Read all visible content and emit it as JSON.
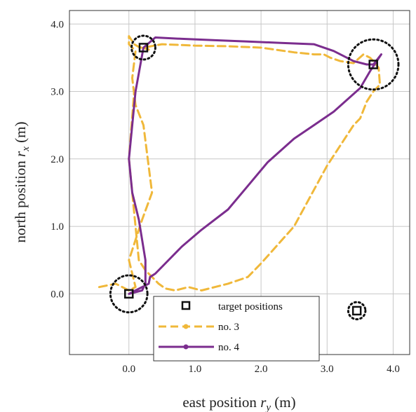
{
  "chart_data": {
    "type": "line",
    "title": "",
    "xlabel_main": "east position ",
    "xlabel_var": "r",
    "xlabel_sub": "y",
    "xlabel_unit": " (m)",
    "ylabel_main": "north position ",
    "ylabel_var": "r",
    "ylabel_sub": "x",
    "ylabel_unit": " (m)",
    "xlim": [
      -0.9,
      4.25
    ],
    "ylim": [
      -0.9,
      4.2
    ],
    "xticks": [
      0.0,
      1.0,
      2.0,
      3.0,
      4.0
    ],
    "xtick_labels": [
      "0.0",
      "1.0",
      "2.0",
      "3.0",
      "4.0"
    ],
    "yticks": [
      0.0,
      1.0,
      2.0,
      3.0,
      4.0
    ],
    "ytick_labels": [
      "0.0",
      "1.0",
      "2.0",
      "3.0",
      "4.0"
    ],
    "grid": true,
    "legend_position": "bottom-center",
    "target_positions": {
      "name": "target positions",
      "points": [
        [
          0.0,
          0.0
        ],
        [
          0.22,
          3.65
        ],
        [
          3.7,
          3.4
        ],
        [
          3.45,
          -0.25
        ]
      ]
    },
    "circles": [
      {
        "x": 0.0,
        "y": 0.0,
        "r": 0.28
      },
      {
        "x": 0.22,
        "y": 3.65,
        "r": 0.18
      },
      {
        "x": 3.7,
        "y": 3.4,
        "r": 0.38
      },
      {
        "x": 3.45,
        "y": -0.25,
        "r": 0.13
      }
    ],
    "series": [
      {
        "name": "no. 3",
        "color": "#f0b83a",
        "dash": "dashed",
        "x": [
          -0.45,
          -0.2,
          0.0,
          0.1,
          0.0,
          0.2,
          0.35,
          0.22,
          0.1,
          0.05,
          0.1,
          0.0,
          0.0,
          0.08,
          0.15,
          0.3,
          0.22,
          0.5,
          1.0,
          1.5,
          2.0,
          2.5,
          2.8,
          2.95,
          3.05,
          3.2,
          3.4,
          3.55,
          3.65,
          3.7,
          3.78,
          3.8,
          3.7,
          3.6,
          3.5,
          3.4,
          3.0,
          2.5,
          2.0,
          1.8,
          1.5,
          1.3,
          1.1,
          0.9,
          0.7,
          0.55,
          0.45,
          0.35,
          0.25,
          0.15,
          0.08,
          0.0,
          0.08
        ],
        "y": [
          0.1,
          0.15,
          0.05,
          0.1,
          0.5,
          1.1,
          1.5,
          2.5,
          2.8,
          3.2,
          3.6,
          3.7,
          3.82,
          3.7,
          3.66,
          3.62,
          3.65,
          3.7,
          3.68,
          3.67,
          3.65,
          3.58,
          3.55,
          3.55,
          3.5,
          3.45,
          3.42,
          3.55,
          3.5,
          3.45,
          3.35,
          3.1,
          3.0,
          2.85,
          2.6,
          2.5,
          1.9,
          1.0,
          0.45,
          0.25,
          0.15,
          0.1,
          0.05,
          0.1,
          0.05,
          0.08,
          0.15,
          0.25,
          0.35,
          0.5,
          1.2,
          2.0,
          3.0
        ]
      },
      {
        "name": "no. 4",
        "color": "#7b2d8e",
        "dash": "solid",
        "x": [
          0.0,
          0.2,
          0.25,
          0.25,
          0.15,
          0.05,
          0.0,
          0.1,
          0.22,
          0.4,
          0.8,
          1.3,
          1.8,
          2.3,
          2.8,
          3.1,
          3.4,
          3.6,
          3.7,
          3.82,
          3.65,
          3.5,
          3.1,
          2.8,
          2.5,
          2.1,
          1.8,
          1.5,
          1.1,
          0.8,
          0.55,
          0.4,
          0.32,
          0.3,
          0.1,
          0.0
        ],
        "y": [
          0.0,
          0.05,
          0.15,
          0.5,
          1.1,
          1.5,
          2.0,
          3.0,
          3.65,
          3.8,
          3.78,
          3.76,
          3.74,
          3.72,
          3.7,
          3.6,
          3.45,
          3.4,
          3.4,
          3.55,
          3.3,
          3.05,
          2.7,
          2.5,
          2.3,
          1.95,
          1.6,
          1.25,
          0.95,
          0.7,
          0.45,
          0.3,
          0.25,
          0.15,
          0.05,
          0.0
        ]
      }
    ],
    "legend": {
      "entries": [
        {
          "label": "target positions",
          "kind": "square"
        },
        {
          "label": "no. 3",
          "kind": "dashed-line"
        },
        {
          "label": "no. 4",
          "kind": "solid-line"
        }
      ]
    }
  }
}
